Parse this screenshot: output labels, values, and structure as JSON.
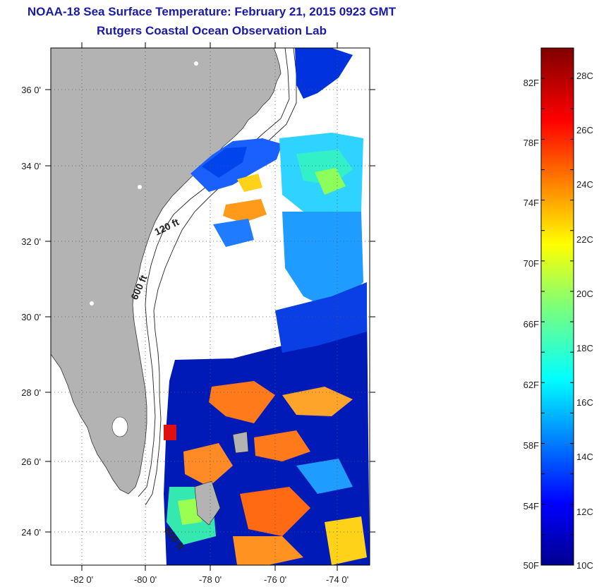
{
  "title": "NOAA-18 Sea Surface Temperature:  February 21, 2015 0923 GMT",
  "subtitle": "Rutgers Coastal Ocean Observation Lab",
  "map": {
    "lat_labels": [
      "36 0'",
      "34 0'",
      "32 0'",
      "30 0'",
      "28 0'",
      "26 0'",
      "24 0'"
    ],
    "lon_labels": [
      "-82 0'",
      "-80 0'",
      "-78 0'",
      "-76 0'",
      "-74 0'"
    ],
    "contours": [
      "120 ft",
      "600 ft",
      "600 ft"
    ],
    "colors": {
      "land": "#b3b3b3",
      "ocean_cloud": "#ffffff",
      "frame": "#000000"
    }
  },
  "colorbar": {
    "f_labels": [
      "82F",
      "78F",
      "74F",
      "70F",
      "66F",
      "62F",
      "58F",
      "54F",
      "50F"
    ],
    "c_labels": [
      "28C",
      "26C",
      "24C",
      "22C",
      "20C",
      "18C",
      "16C",
      "14C",
      "12C",
      "10C"
    ],
    "range_f": [
      50,
      84
    ],
    "scheme": "jet"
  }
}
